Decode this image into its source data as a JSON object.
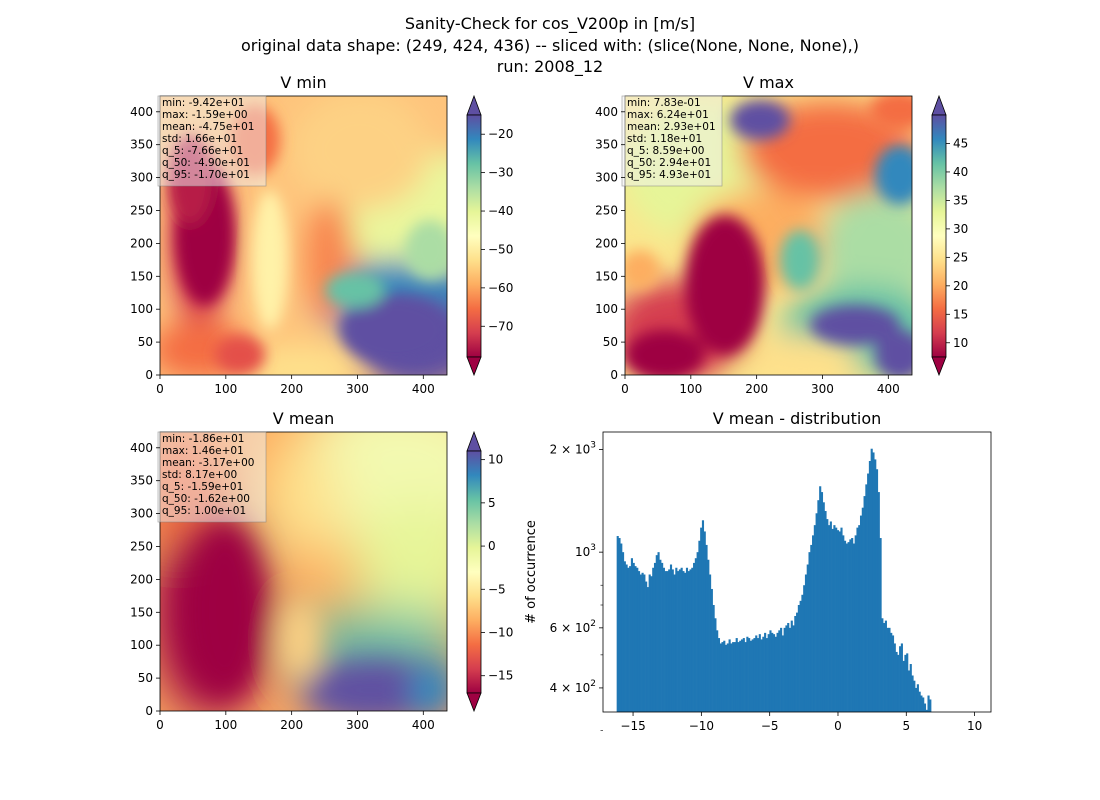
{
  "figure": {
    "title_lines": [
      "Sanity-Check for cos_V200p in [m/s]",
      "original data shape: (249, 424, 436) -- sliced with: (slice(None, None, None),)",
      "run: 2008_12"
    ]
  },
  "chart_data": [
    {
      "type": "heatmap",
      "title": "V min",
      "colormap": "Spectral",
      "x_ticks": [
        0,
        100,
        200,
        300,
        400
      ],
      "y_ticks": [
        0,
        50,
        100,
        150,
        200,
        250,
        300,
        350,
        400
      ],
      "xlim": [
        0,
        436
      ],
      "ylim": [
        0,
        424
      ],
      "colorbar": {
        "range": [
          -78,
          -15
        ],
        "ticks": [
          -70,
          -60,
          -50,
          -40,
          -30,
          -20
        ],
        "extend": "both"
      },
      "stats": [
        "min: -9.42e+01",
        "max: -1.59e+00",
        "mean: -4.75e+01",
        "std: 1.66e+01",
        "q_5: -7.66e+01",
        "q_50: -4.90e+01",
        "q_95: -1.70e+01"
      ]
    },
    {
      "type": "heatmap",
      "title": "V max",
      "colormap": "Spectral",
      "x_ticks": [
        0,
        100,
        200,
        300,
        400
      ],
      "y_ticks": [
        0,
        50,
        100,
        150,
        200,
        250,
        300,
        350,
        400
      ],
      "xlim": [
        0,
        436
      ],
      "ylim": [
        0,
        424
      ],
      "colorbar": {
        "range": [
          7.5,
          50
        ],
        "ticks": [
          10,
          15,
          20,
          25,
          30,
          35,
          40,
          45
        ],
        "extend": "both"
      },
      "stats": [
        "min: 7.83e-01",
        "max: 6.24e+01",
        "mean: 2.93e+01",
        "std: 1.18e+01",
        "q_5: 8.59e+00",
        "q_50: 2.94e+01",
        "q_95: 4.93e+01"
      ]
    },
    {
      "type": "heatmap",
      "title": "V mean",
      "colormap": "Spectral",
      "x_ticks": [
        0,
        100,
        200,
        300,
        400
      ],
      "y_ticks": [
        0,
        50,
        100,
        150,
        200,
        250,
        300,
        350,
        400
      ],
      "xlim": [
        0,
        436
      ],
      "ylim": [
        0,
        424
      ],
      "colorbar": {
        "range": [
          -17,
          11
        ],
        "ticks": [
          -15,
          -10,
          -5,
          0,
          5,
          10
        ],
        "extend": "both"
      },
      "stats": [
        "min: -1.86e+01",
        "max: 1.46e+01",
        "mean: -3.17e+00",
        "std: 8.17e+00",
        "q_5: -1.59e+01",
        "q_50: -1.62e+00",
        "q_95: 1.00e+01"
      ]
    },
    {
      "type": "bar",
      "title": "V mean - distribution",
      "ylabel": "# of occurrence",
      "yscale": "log",
      "color": "#1f77b4",
      "xlim": [
        -17.2,
        11.2
      ],
      "ylim": [
        340,
        2250
      ],
      "x_ticks": [
        -15,
        -10,
        -5,
        0,
        5,
        10
      ],
      "x_tick_labels": [
        "−15",
        "−10",
        "−5",
        "0",
        "5",
        "10"
      ],
      "y_ticks": [
        {
          "value": 2000,
          "base": "2 × 10",
          "exp": "3"
        },
        {
          "value": 1000,
          "base": "10",
          "exp": "3"
        },
        {
          "value": 600,
          "base": "6 × 10",
          "exp": "2"
        },
        {
          "value": 400,
          "base": "4 × 10",
          "exp": "2"
        }
      ],
      "minor_y_ticks": [
        800,
        700,
        500,
        300
      ],
      "bins": {
        "start": -16.2,
        "width": 0.13
      },
      "values": [
        1115,
        1100,
        1060,
        1000,
        940,
        920,
        900,
        910,
        960,
        930,
        910,
        900,
        880,
        860,
        870,
        860,
        820,
        790,
        860,
        850,
        900,
        930,
        980,
        1000,
        950,
        930,
        900,
        880,
        880,
        890,
        920,
        890,
        860,
        900,
        880,
        890,
        900,
        880,
        870,
        900,
        880,
        890,
        900,
        930,
        960,
        1000,
        1080,
        1180,
        1240,
        1150,
        1050,
        950,
        860,
        780,
        700,
        640,
        590,
        560,
        540,
        545,
        550,
        535,
        540,
        555,
        540,
        545,
        545,
        560,
        545,
        550,
        555,
        560,
        545,
        565,
        560,
        550,
        555,
        560,
        570,
        560,
        575,
        555,
        565,
        580,
        560,
        575,
        590,
        580,
        575,
        565,
        580,
        590,
        600,
        570,
        600,
        610,
        620,
        600,
        630,
        610,
        650,
        665,
        700,
        720,
        750,
        800,
        860,
        920,
        1000,
        1050,
        1120,
        1200,
        1300,
        1420,
        1560,
        1500,
        1400,
        1320,
        1250,
        1200,
        1230,
        1170,
        1200,
        1180,
        1160,
        1150,
        1180,
        1120,
        1080,
        1060,
        1070,
        1090,
        1100,
        1060,
        1120,
        1180,
        1200,
        1280,
        1350,
        1460,
        1580,
        1700,
        1850,
        2010,
        1960,
        1870,
        1750,
        1500,
        1100,
        640,
        620,
        630,
        600,
        600,
        580,
        570,
        540,
        510,
        500,
        530,
        540,
        480,
        500,
        505,
        450,
        470,
        435,
        420,
        400,
        410,
        390,
        380,
        375,
        360,
        345,
        380,
        370,
        340
      ]
    }
  ]
}
